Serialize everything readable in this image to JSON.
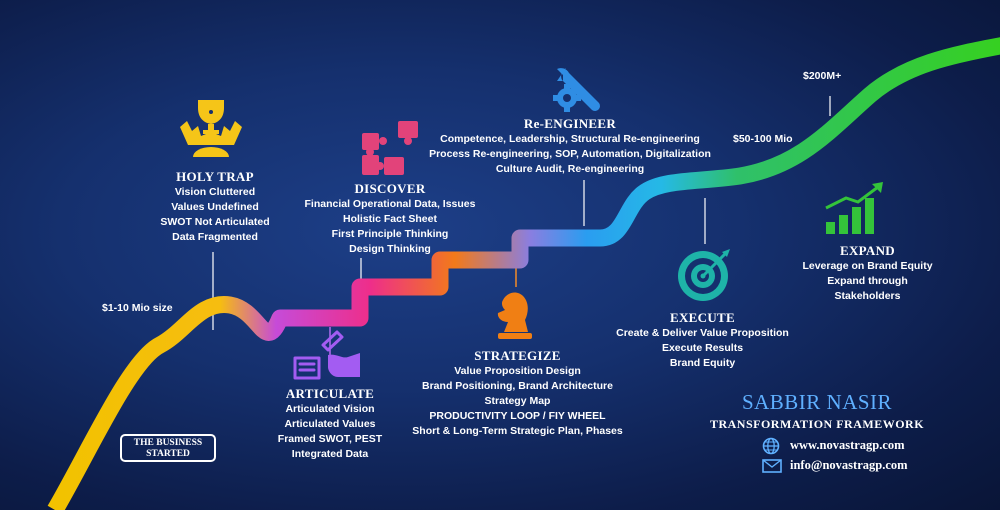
{
  "colors": {
    "background": "#15306e",
    "brand_blue": "#5fb0ff",
    "path_yellow": "#f2c200",
    "path_green": "#36c93a",
    "icon_pink": "#e2437a",
    "icon_yellow": "#f5c518",
    "icon_purple": "#a35cf2",
    "icon_orange": "#f07f14",
    "icon_blue": "#2f8de4",
    "icon_teal": "#1eb3a8",
    "icon_green": "#34c43a"
  },
  "stages": {
    "holy_trap": {
      "title": "HOLY TRAP",
      "icon": "trophy-gear-icon",
      "lines": [
        "Vision Cluttered",
        "Values Undefined",
        "SWOT Not Articulated",
        "Data Fragmented"
      ]
    },
    "articulate": {
      "title": "ARTICULATE",
      "icon": "hand-writing-icon",
      "lines": [
        "Articulated Vision",
        "Articulated Values",
        "Framed SWOT, PEST",
        "Integrated Data"
      ]
    },
    "discover": {
      "title": "DISCOVER",
      "icon": "puzzle-icon",
      "lines": [
        "Financial Operational Data, Issues",
        "Holistic Fact Sheet",
        "First Principle Thinking",
        "Design Thinking"
      ]
    },
    "strategize": {
      "title": "STRATEGIZE",
      "icon": "chess-knight-icon",
      "lines": [
        "Value Proposition Design",
        "Brand Positioning, Brand Architecture",
        "Strategy Map",
        "PRODUCTIVITY LOOP / FIY WHEEL",
        "Short & Long-Term Strategic Plan, Phases"
      ]
    },
    "reengineer": {
      "title": "Re-ENGINEER",
      "icon": "wrench-gear-icon",
      "lines": [
        "Competence, Leadership, Structural Re-engineering",
        "Process Re-engineering, SOP, Automation, Digitalization",
        "Culture Audit, Re-engineering"
      ]
    },
    "execute": {
      "title": "EXECUTE",
      "icon": "target-icon",
      "lines": [
        "Create & Deliver Value Proposition",
        "Execute Results",
        "Brand Equity"
      ]
    },
    "expand": {
      "title": "EXPAND",
      "icon": "growth-chart-icon",
      "lines": [
        "Leverage on Brand Equity",
        "Expand through",
        "Stakeholders"
      ]
    }
  },
  "milestones": {
    "size1": "$1-10 Mio size",
    "size2": "$50-100 Mio",
    "size3": "$200M+"
  },
  "started": {
    "line1": "THE BUSINESS",
    "line2": "STARTED"
  },
  "brand": {
    "name": "SABBIR NASIR",
    "subtitle": "TRANSFORMATION FRAMEWORK"
  },
  "contact": {
    "website": "www.novastragp.com",
    "email": "info@novastragp.com",
    "website_icon": "globe-icon",
    "email_icon": "envelope-icon"
  }
}
